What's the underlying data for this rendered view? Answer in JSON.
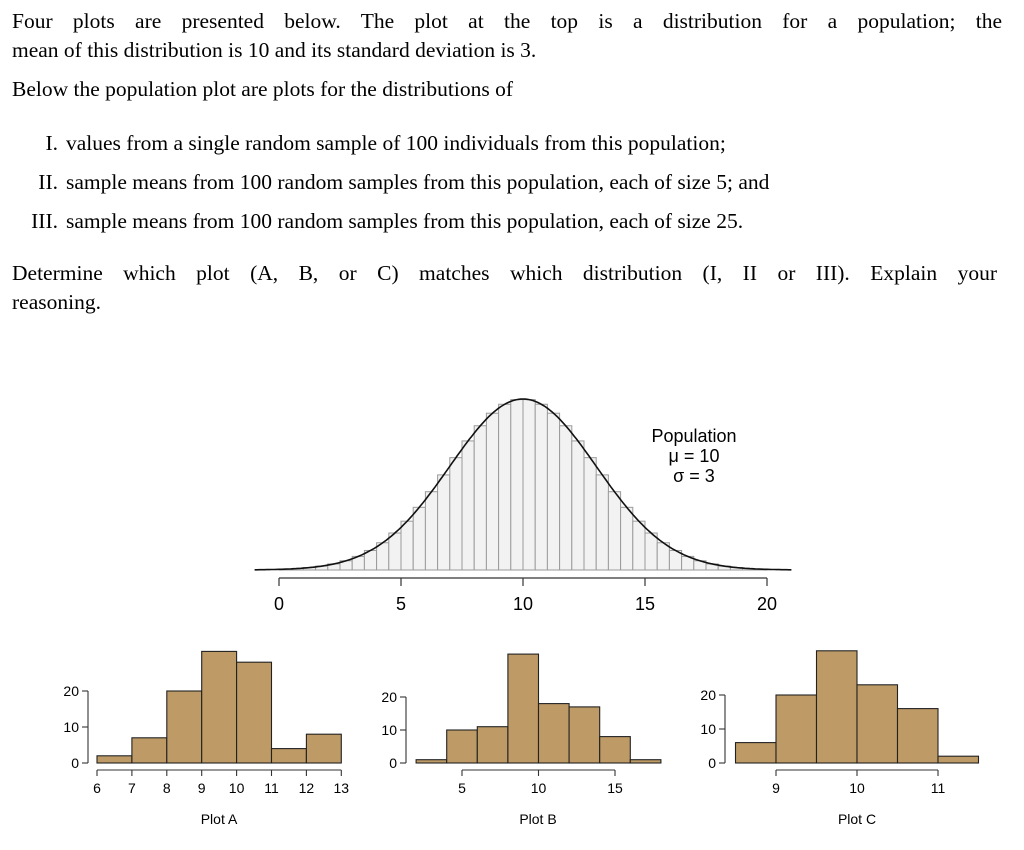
{
  "text": {
    "intro_line1": "Four plots are presented below.  The plot at the top is a distribution for a population; the",
    "intro_line2": "mean of this distribution is 10 and its standard deviation is 3.",
    "below": "Below the population plot are plots for the distributions of",
    "items": [
      {
        "num": "I.",
        "text": "values from a single random sample of 100 individuals from this population;"
      },
      {
        "num": "II.",
        "text": "sample means from 100 random samples from this population, each of size 5; and"
      },
      {
        "num": "III.",
        "text": "sample means from 100 random samples from this population, each of size 25."
      }
    ],
    "question_line1": "Determine which plot (A, B, or C) matches which distribution (I, II or III). Explain your",
    "question_line2": "reasoning."
  },
  "colors": {
    "population_fill": "#f2f2f2",
    "population_bar_stroke": "#9a9a9a",
    "sample_fill": "#bd9a66",
    "sample_stroke": "#222222",
    "axis": "#333333"
  },
  "chart_data": [
    {
      "id": "population",
      "type": "bar",
      "title": "Population",
      "annotations": [
        "Population",
        "μ = 10",
        "σ = 3"
      ],
      "description": "Normal density curve with mean 10 and sd 3 overlaid on histogram bars of width 0.5",
      "mean": 10,
      "sd": 3,
      "bin_width": 0.5,
      "xlim": [
        -1,
        21
      ],
      "x_ticks": [
        0,
        5,
        10,
        15,
        20
      ],
      "xlabel": "",
      "ylabel": ""
    },
    {
      "id": "plot_a",
      "type": "bar",
      "title": "Plot A",
      "bin_edges": [
        6,
        7,
        8,
        9,
        10,
        11,
        12,
        13
      ],
      "values": [
        2,
        7,
        20,
        31,
        28,
        4,
        8
      ],
      "x_ticks": [
        6,
        7,
        8,
        9,
        10,
        11,
        12,
        13
      ],
      "y_ticks": [
        0,
        10,
        20
      ],
      "xlabel": "Plot A",
      "ylabel": ""
    },
    {
      "id": "plot_b",
      "type": "bar",
      "title": "Plot B",
      "bin_edges": [
        2,
        4,
        6,
        8,
        10,
        12,
        14,
        16,
        18
      ],
      "values": [
        1,
        10,
        11,
        33,
        18,
        17,
        8,
        1
      ],
      "x_ticks": [
        5,
        10,
        15
      ],
      "y_ticks": [
        0,
        10,
        20
      ],
      "xlabel": "Plot B",
      "ylabel": ""
    },
    {
      "id": "plot_c",
      "type": "bar",
      "title": "Plot C",
      "bin_edges": [
        8.5,
        9,
        9.5,
        10,
        10.5,
        11,
        11.5
      ],
      "values": [
        6,
        20,
        33,
        23,
        16,
        2
      ],
      "x_ticks": [
        9,
        10,
        11
      ],
      "y_ticks": [
        0,
        10,
        20
      ],
      "xlabel": "Plot C",
      "ylabel": ""
    }
  ]
}
